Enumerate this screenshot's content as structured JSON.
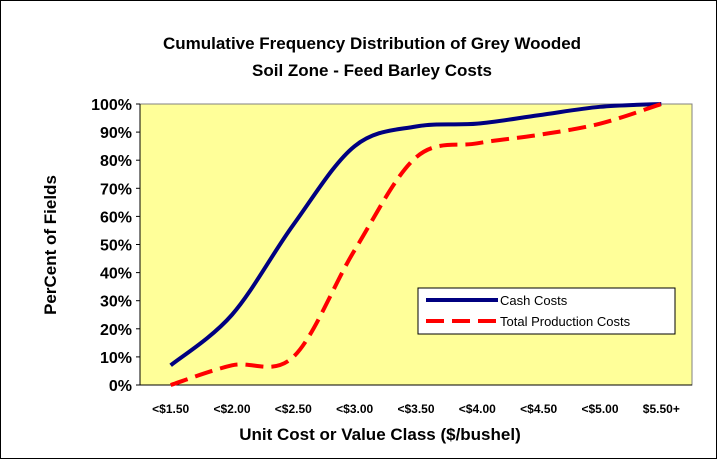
{
  "chart_data": {
    "type": "line",
    "title": "Cumulative Frequency Distribution of Grey Wooded",
    "subtitle": "Soil Zone - Feed Barley Costs",
    "x_label": "Unit Cost or Value Class ($/bushel)",
    "y_label": "PerCent of Fields",
    "categories": [
      "<$1.50",
      "<$2.00",
      "<$2.50",
      "<$3.00",
      "<$3.50",
      "<$4.00",
      "<$4.50",
      "<$5.00",
      "$5.50+"
    ],
    "series": [
      {
        "name": "Cash Costs",
        "color": "#000080",
        "values": [
          7,
          25,
          57,
          85,
          92,
          93,
          96,
          99,
          100
        ]
      },
      {
        "name": "Total Production Costs",
        "color": "#ff0000",
        "values": [
          0,
          7,
          10,
          48,
          81,
          86,
          89,
          93,
          100
        ]
      }
    ],
    "ylim": [
      0,
      100
    ],
    "yticks": [
      {
        "value": 0,
        "label": "0%"
      },
      {
        "value": 10,
        "label": "10%"
      },
      {
        "value": 20,
        "label": "20%"
      },
      {
        "value": 30,
        "label": "30%"
      },
      {
        "value": 40,
        "label": "40%"
      },
      {
        "value": 50,
        "label": "50%"
      },
      {
        "value": 60,
        "label": "60%"
      },
      {
        "value": 70,
        "label": "70%"
      },
      {
        "value": 80,
        "label": "80%"
      },
      {
        "value": 90,
        "label": "90%"
      },
      {
        "value": 100,
        "label": "100%"
      }
    ],
    "plot_background": "#ffff99",
    "legend": "lower right"
  }
}
